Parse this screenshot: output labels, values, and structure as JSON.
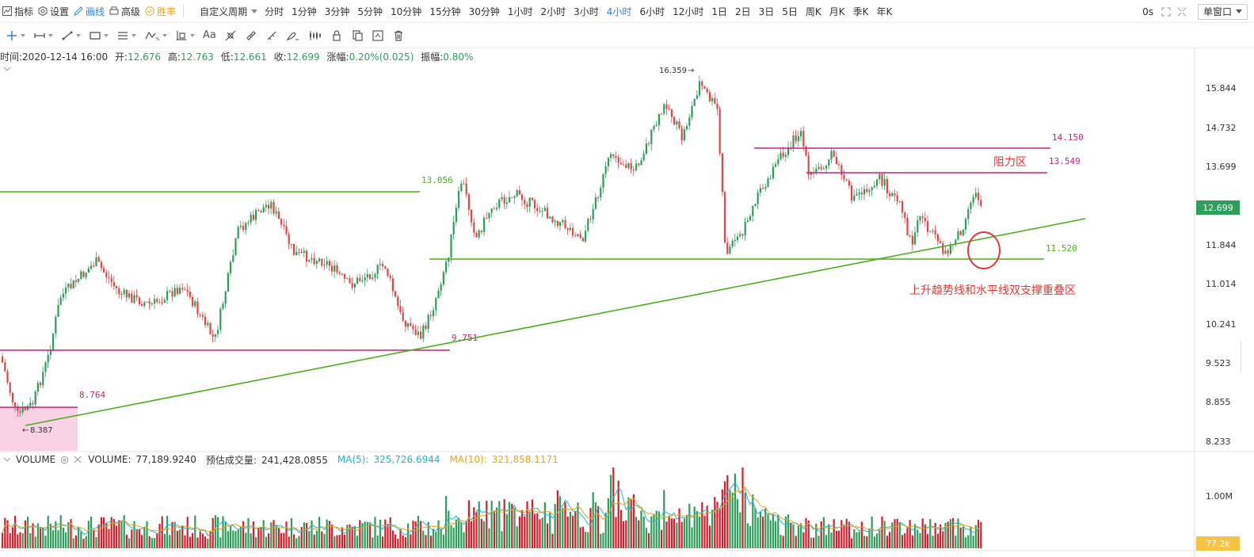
{
  "toolbar": {
    "indicators": "指标",
    "settings": "设置",
    "draw": "画线",
    "advanced": "高级",
    "winrate": "胜率",
    "custom_period": "自定义周期",
    "periods": [
      {
        "label": "分时",
        "active": false
      },
      {
        "label": "1分钟",
        "active": false
      },
      {
        "label": "3分钟",
        "active": false
      },
      {
        "label": "5分钟",
        "active": false
      },
      {
        "label": "10分钟",
        "active": false
      },
      {
        "label": "15分钟",
        "active": false
      },
      {
        "label": "30分钟",
        "active": false
      },
      {
        "label": "1小时",
        "active": false
      },
      {
        "label": "2小时",
        "active": false
      },
      {
        "label": "3小时",
        "active": false
      },
      {
        "label": "4小时",
        "active": true
      },
      {
        "label": "6小时",
        "active": false
      },
      {
        "label": "12小时",
        "active": false
      },
      {
        "label": "1日",
        "active": false
      },
      {
        "label": "2日",
        "active": false
      },
      {
        "label": "3日",
        "active": false
      },
      {
        "label": "5日",
        "active": false
      },
      {
        "label": "周K",
        "active": false
      },
      {
        "label": "月K",
        "active": false
      },
      {
        "label": "季K",
        "active": false
      },
      {
        "label": "年K",
        "active": false
      }
    ],
    "refresh": "0s",
    "window_mode": "单窗口"
  },
  "draw_tools": [
    "crosshair-icon",
    "horizontal-ray-icon",
    "trend-line-icon",
    "rectangle-icon",
    "parallel-channel-icon",
    "wave-icon",
    "measure-icon",
    "text-icon",
    "fib-icon",
    "magnet-icon",
    "ruler-icon",
    "brush-icon",
    "candle-pattern-icon",
    "lock-icon",
    "copy-icon",
    "snapshot-icon",
    "trash-icon"
  ],
  "text_tool_label": "Aa",
  "info": {
    "time_label": "时间:",
    "time": "2020-12-14 16:00",
    "open_label": "开:",
    "open": "12.676",
    "high_label": "高:",
    "high": "12.763",
    "low_label": "低:",
    "low": "12.661",
    "close_label": "收:",
    "close": "12.699",
    "change_label": "涨幅:",
    "change": "0.20%(0.025)",
    "amp_label": "振幅:",
    "amp": "0.80%"
  },
  "volume": {
    "title": "VOLUME",
    "value_label": "VOLUME:",
    "value": "77,189.9240",
    "est_label": "预估成交量:",
    "est": "241,428.0855",
    "ma5_label": "MA(5):",
    "ma5": "325,726.6944",
    "ma10_label": "MA(10):",
    "ma10": "321,858.1171",
    "axis_tick": "1.00M",
    "current_tag": "77.2k"
  },
  "chart_data": {
    "type": "candlestick",
    "price_axis_ticks": [
      "15.844",
      "14.732",
      "13.699",
      "12.844",
      "11.844",
      "11.014",
      "10.241",
      "9.523",
      "8.855",
      "8.233"
    ],
    "current_price": "12.699",
    "annotations": {
      "high": "16.359",
      "low": "8.387",
      "levels": [
        "13.056",
        "9.751",
        "8.764",
        "14.150",
        "13.549",
        "11.520"
      ],
      "resistance_label": "阻力区",
      "support_label": "上升趋势线和水平线双支撑重叠区"
    },
    "colors": {
      "up": "#2e9e5b",
      "down": "#e04848",
      "green_line": "#4caf1e",
      "magenta_line": "#c0267e",
      "annotation_red": "#e53935"
    }
  }
}
